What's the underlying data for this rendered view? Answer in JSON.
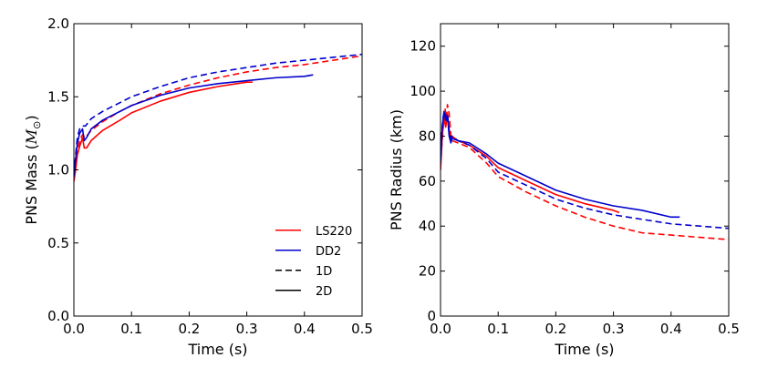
{
  "chart_data": [
    {
      "type": "line",
      "xlabel": "Time (s)",
      "ylabel": "PNS Mass (M☉)",
      "ylabel_text": "PNS Mass (",
      "ylabel_symbol": "M",
      "ylabel_subscript": "⊙",
      "ylabel_close": ")",
      "xlim": [
        0.0,
        0.5
      ],
      "ylim": [
        0.0,
        2.0
      ],
      "xticks": [
        "0.0",
        "0.1",
        "0.2",
        "0.3",
        "0.4",
        "0.5"
      ],
      "yticks": [
        "0.0",
        "0.5",
        "1.0",
        "1.5",
        "2.0"
      ],
      "legend": {
        "placement": "lower-right",
        "entries": [
          {
            "label": "LS220",
            "color": "#ff0000",
            "style": "solid"
          },
          {
            "label": "DD2",
            "color": "#0000cc",
            "style": "solid"
          },
          {
            "label": "1D",
            "color": "#000000",
            "style": "dashed"
          },
          {
            "label": "2D",
            "color": "#000000",
            "style": "solid"
          }
        ]
      },
      "series": [
        {
          "name": "LS220 1D",
          "color": "#ff0000",
          "style": "dashed",
          "x": [
            0.0,
            0.003,
            0.006,
            0.01,
            0.015,
            0.02,
            0.03,
            0.05,
            0.08,
            0.1,
            0.15,
            0.2,
            0.25,
            0.3,
            0.35,
            0.4,
            0.45,
            0.5
          ],
          "y": [
            0.95,
            1.02,
            1.12,
            1.2,
            1.24,
            1.22,
            1.27,
            1.33,
            1.4,
            1.44,
            1.52,
            1.58,
            1.63,
            1.67,
            1.7,
            1.72,
            1.75,
            1.78
          ]
        },
        {
          "name": "LS220 2D",
          "color": "#ff0000",
          "style": "solid",
          "x": [
            0.0,
            0.003,
            0.006,
            0.01,
            0.015,
            0.018,
            0.022,
            0.03,
            0.05,
            0.08,
            0.1,
            0.15,
            0.2,
            0.25,
            0.3,
            0.31
          ],
          "y": [
            0.92,
            1.0,
            1.1,
            1.16,
            1.22,
            1.15,
            1.15,
            1.2,
            1.27,
            1.34,
            1.39,
            1.47,
            1.53,
            1.57,
            1.6,
            1.6
          ]
        },
        {
          "name": "DD2 1D",
          "color": "#0000cc",
          "style": "dashed",
          "x": [
            0.0,
            0.003,
            0.006,
            0.01,
            0.015,
            0.02,
            0.03,
            0.05,
            0.08,
            0.1,
            0.15,
            0.2,
            0.25,
            0.3,
            0.35,
            0.4,
            0.45,
            0.5
          ],
          "y": [
            0.97,
            1.1,
            1.22,
            1.28,
            1.3,
            1.3,
            1.35,
            1.4,
            1.46,
            1.5,
            1.57,
            1.63,
            1.67,
            1.7,
            1.73,
            1.75,
            1.77,
            1.79
          ]
        },
        {
          "name": "DD2 2D",
          "color": "#0000cc",
          "style": "solid",
          "x": [
            0.0,
            0.003,
            0.006,
            0.01,
            0.015,
            0.018,
            0.022,
            0.03,
            0.05,
            0.08,
            0.1,
            0.15,
            0.2,
            0.25,
            0.3,
            0.35,
            0.4,
            0.415
          ],
          "y": [
            0.95,
            1.07,
            1.18,
            1.25,
            1.28,
            1.2,
            1.22,
            1.28,
            1.34,
            1.4,
            1.44,
            1.51,
            1.56,
            1.59,
            1.61,
            1.63,
            1.64,
            1.65
          ]
        }
      ]
    },
    {
      "type": "line",
      "xlabel": "Time (s)",
      "ylabel": "PNS Radius (km)",
      "xlim": [
        0.0,
        0.5
      ],
      "ylim": [
        0,
        130
      ],
      "xticks": [
        "0.0",
        "0.1",
        "0.2",
        "0.3",
        "0.4",
        "0.5"
      ],
      "yticks": [
        "0",
        "20",
        "40",
        "60",
        "80",
        "100",
        "120"
      ],
      "series": [
        {
          "name": "LS220 1D",
          "color": "#ff0000",
          "style": "dashed",
          "x": [
            0.0,
            0.002,
            0.005,
            0.008,
            0.01,
            0.012,
            0.015,
            0.018,
            0.02,
            0.03,
            0.05,
            0.08,
            0.1,
            0.15,
            0.2,
            0.25,
            0.3,
            0.35,
            0.4,
            0.45,
            0.5
          ],
          "y": [
            65,
            75,
            85,
            92,
            88,
            94,
            90,
            80,
            78,
            77,
            75,
            68,
            62,
            55,
            49,
            44,
            40,
            37,
            36,
            35,
            34
          ]
        },
        {
          "name": "LS220 2D",
          "color": "#ff0000",
          "style": "solid",
          "x": [
            0.0,
            0.003,
            0.006,
            0.009,
            0.012,
            0.015,
            0.018,
            0.02,
            0.03,
            0.05,
            0.08,
            0.1,
            0.15,
            0.2,
            0.25,
            0.3,
            0.31
          ],
          "y": [
            65,
            80,
            88,
            84,
            90,
            83,
            78,
            80,
            78,
            76,
            71,
            66,
            60,
            54,
            50,
            47,
            46
          ]
        },
        {
          "name": "DD2 1D",
          "color": "#0000cc",
          "style": "dashed",
          "x": [
            0.0,
            0.002,
            0.005,
            0.008,
            0.01,
            0.012,
            0.015,
            0.018,
            0.02,
            0.03,
            0.05,
            0.08,
            0.1,
            0.15,
            0.2,
            0.25,
            0.3,
            0.35,
            0.4,
            0.45,
            0.5
          ],
          "y": [
            70,
            82,
            89,
            91,
            86,
            90,
            82,
            79,
            80,
            78,
            76,
            70,
            64,
            58,
            52,
            48,
            45,
            43,
            41,
            40,
            39
          ]
        },
        {
          "name": "DD2 2D",
          "color": "#0000cc",
          "style": "solid",
          "x": [
            0.0,
            0.003,
            0.006,
            0.009,
            0.012,
            0.015,
            0.018,
            0.02,
            0.03,
            0.05,
            0.08,
            0.1,
            0.15,
            0.2,
            0.25,
            0.3,
            0.35,
            0.4,
            0.415
          ],
          "y": [
            68,
            84,
            91,
            87,
            89,
            80,
            77,
            79,
            78,
            77,
            72,
            68,
            62,
            56,
            52,
            49,
            47,
            44,
            44
          ]
        }
      ]
    }
  ]
}
